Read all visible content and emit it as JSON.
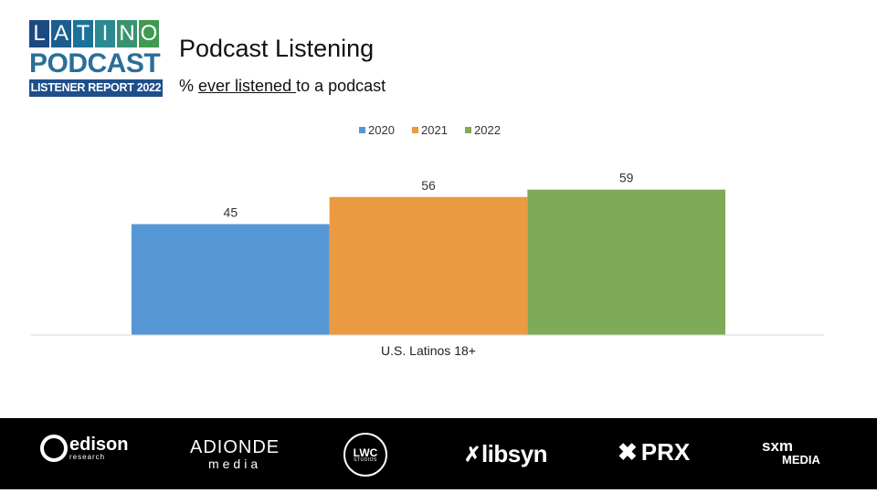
{
  "logo": {
    "letters": [
      "L",
      "A",
      "T",
      "I",
      "N",
      "O"
    ],
    "letter_colors": [
      "#1b4a83",
      "#1c5e8e",
      "#1b7399",
      "#2a8a8f",
      "#3a9370",
      "#3f9a52"
    ],
    "word": "PODCAST",
    "report": "LISTENER REPORT 2022"
  },
  "header": {
    "title": "Podcast Listening",
    "subtitle_prefix": "% ",
    "subtitle_underlined": "ever listened ",
    "subtitle_suffix": "to a podcast"
  },
  "chart_data": {
    "type": "bar",
    "categories": [
      "U.S. Latinos 18+"
    ],
    "series": [
      {
        "name": "2020",
        "values": [
          45
        ],
        "color": "#5596d4"
      },
      {
        "name": "2021",
        "values": [
          56
        ],
        "color": "#ea9a41"
      },
      {
        "name": "2022",
        "values": [
          59
        ],
        "color": "#7fab58"
      }
    ],
    "ylim": [
      0,
      100
    ],
    "grid": false,
    "legend": "top-center",
    "data_labels": true
  },
  "footer": {
    "sponsors": {
      "edison": {
        "name": "edison",
        "sub": "research"
      },
      "adio": {
        "name": "ADIONDE",
        "sub": "media"
      },
      "lwc": {
        "name": "LWC",
        "sub": "STUDIOS"
      },
      "libsyn": {
        "mark": "✗",
        "name": "libsyn"
      },
      "prx": {
        "mark": "✖",
        "name": "PRX"
      },
      "sxm": {
        "name": "sxm",
        "sub": "MEDIA"
      }
    }
  }
}
